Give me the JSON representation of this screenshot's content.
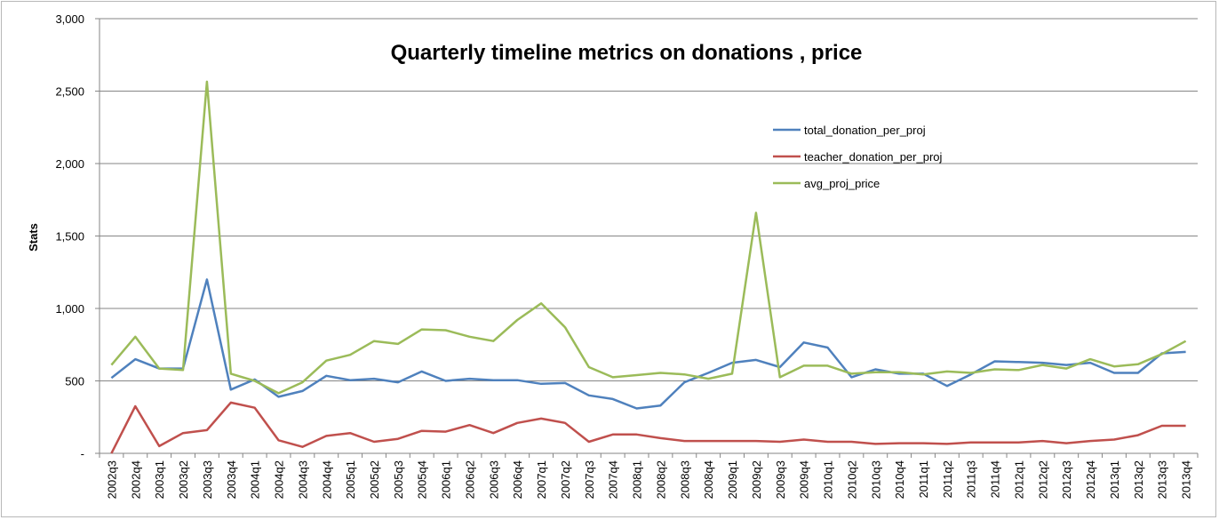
{
  "chart_data": {
    "type": "line",
    "title": "Quarterly timeline metrics on donations , price",
    "xlabel": "",
    "ylabel": "Stats",
    "ylim": [
      0,
      3000
    ],
    "yticks": [
      {
        "value": 0,
        "label": "-"
      },
      {
        "value": 500,
        "label": "500"
      },
      {
        "value": 1000,
        "label": "1,000"
      },
      {
        "value": 1500,
        "label": "1,500"
      },
      {
        "value": 2000,
        "label": "2,000"
      },
      {
        "value": 2500,
        "label": "2,500"
      },
      {
        "value": 3000,
        "label": "3,000"
      }
    ],
    "grid": "horizontal",
    "legend_position": "upper-right",
    "categories": [
      "2002q3",
      "2002q4",
      "2003q1",
      "2003q2",
      "2003q3",
      "2003q4",
      "2004q1",
      "2004q2",
      "2004q3",
      "2004q4",
      "2005q1",
      "2005q2",
      "2005q3",
      "2005q4",
      "2006q1",
      "2006q2",
      "2006q3",
      "2006q4",
      "2007q1",
      "2007q2",
      "2007q3",
      "2007q4",
      "2008q1",
      "2008q2",
      "2008q3",
      "2008q4",
      "2009q1",
      "2009q2",
      "2009q3",
      "2009q4",
      "2010q1",
      "2010q2",
      "2010q3",
      "2010q4",
      "2011q1",
      "2011q2",
      "2011q3",
      "2011q4",
      "2012q1",
      "2012q2",
      "2012q3",
      "2012q4",
      "2013q1",
      "2013q2",
      "2013q3",
      "2013q4"
    ],
    "series": [
      {
        "name": "total_donation_per_proj",
        "color": "#4f81bd",
        "values": [
          520,
          650,
          585,
          585,
          1200,
          440,
          510,
          390,
          430,
          535,
          505,
          515,
          490,
          565,
          500,
          515,
          505,
          505,
          480,
          485,
          400,
          375,
          310,
          330,
          490,
          555,
          625,
          645,
          595,
          765,
          730,
          525,
          580,
          550,
          550,
          465,
          545,
          635,
          630,
          625,
          610,
          625,
          555,
          555,
          690,
          700
        ]
      },
      {
        "name": "teacher_donation_per_proj",
        "color": "#c0504d",
        "values": [
          0,
          325,
          50,
          140,
          160,
          350,
          315,
          90,
          45,
          120,
          140,
          80,
          100,
          155,
          150,
          195,
          140,
          210,
          240,
          210,
          80,
          130,
          130,
          105,
          85,
          85,
          85,
          85,
          80,
          95,
          80,
          80,
          65,
          70,
          70,
          65,
          75,
          75,
          75,
          85,
          70,
          85,
          95,
          125,
          190,
          190
        ]
      },
      {
        "name": "avg_proj_price",
        "color": "#9bbb59",
        "values": [
          610,
          805,
          585,
          575,
          2565,
          550,
          500,
          415,
          490,
          640,
          680,
          775,
          755,
          855,
          850,
          805,
          775,
          920,
          1035,
          870,
          595,
          525,
          540,
          555,
          545,
          515,
          550,
          1660,
          525,
          605,
          605,
          550,
          560,
          560,
          545,
          565,
          555,
          580,
          575,
          610,
          585,
          650,
          600,
          615,
          685,
          775
        ]
      }
    ]
  }
}
